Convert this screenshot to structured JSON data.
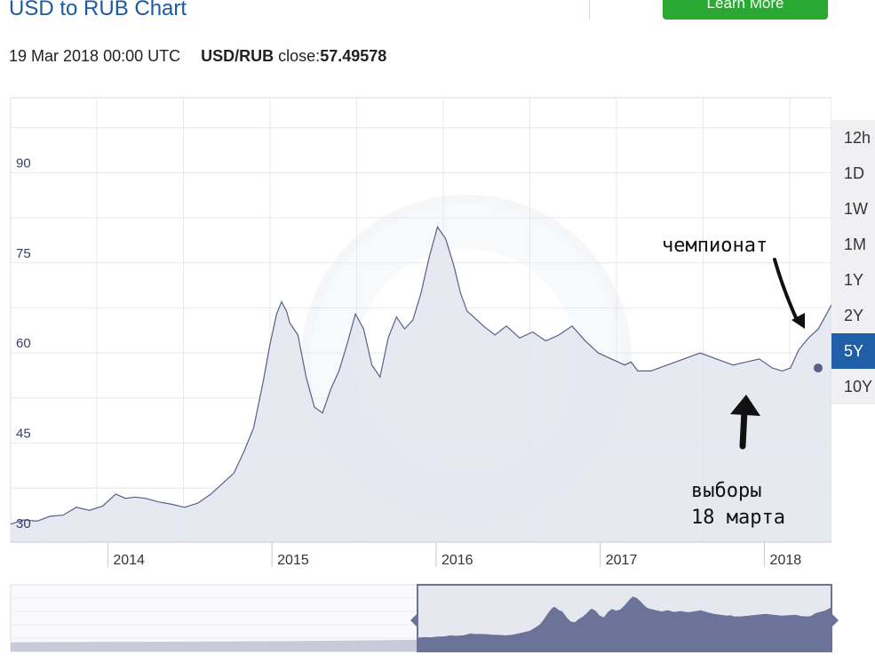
{
  "header": {
    "title": "USD to RUB Chart",
    "learn_more_label": "Learn More"
  },
  "quote": {
    "timestamp": "19 Mar 2018 00:00 UTC",
    "pair": "USD/RUB",
    "close_label": "close:",
    "close_value": "57.49578"
  },
  "ranges": [
    "12h",
    "1D",
    "1W",
    "1M",
    "1Y",
    "2Y",
    "5Y",
    "10Y"
  ],
  "active_range": "5Y",
  "annotations": {
    "championship": "чемпионат",
    "elections_line1": "выборы",
    "elections_line2": "18 марта"
  },
  "colors": {
    "accent": "#1f5fa7",
    "button_green": "#29a832",
    "line": "#5a5f88",
    "area_fill": "#e3e5ee",
    "nav_fill": "#6c7399"
  },
  "chart_data": {
    "type": "area",
    "title": "USD to RUB Chart",
    "xlabel": "",
    "ylabel": "",
    "x_ticks": [
      "2014",
      "2015",
      "2016",
      "2017",
      "2018"
    ],
    "y_ticks": [
      30,
      45,
      60,
      75,
      90
    ],
    "xlim": [
      2013.3,
      2018.3
    ],
    "ylim": [
      28.5,
      102.5
    ],
    "grid": true,
    "highlighted_point": {
      "x": "2018-03-19",
      "y": 57.49578
    },
    "series": [
      {
        "x": [
          2013.3,
          2013.38,
          2013.46,
          2013.54,
          2013.62,
          2013.7,
          2013.78,
          2013.86,
          2013.94,
          2014.0,
          2014.06,
          2014.12,
          2014.2,
          2014.28,
          2014.36,
          2014.44,
          2014.52,
          2014.6,
          2014.66,
          2014.72,
          2014.78,
          2014.84,
          2014.88,
          2014.92,
          2014.95,
          2014.98,
          2015.0,
          2015.05,
          2015.1,
          2015.15,
          2015.2,
          2015.25,
          2015.3,
          2015.35,
          2015.4,
          2015.45,
          2015.5,
          2015.55,
          2015.6,
          2015.65,
          2015.7,
          2015.75,
          2015.8,
          2015.85,
          2015.9,
          2015.95,
          2016.0,
          2016.04,
          2016.08,
          2016.12,
          2016.18,
          2016.25,
          2016.32,
          2016.4,
          2016.48,
          2016.56,
          2016.64,
          2016.72,
          2016.8,
          2016.88,
          2016.96,
          2017.04,
          2017.08,
          2017.12,
          2017.2,
          2017.3,
          2017.4,
          2017.5,
          2017.6,
          2017.7,
          2017.78,
          2017.86,
          2017.94,
          2018.0,
          2018.05,
          2018.1,
          2018.16,
          2018.22,
          2018.28,
          2018.3
        ],
        "y": [
          31.5,
          32.2,
          32.0,
          32.8,
          33.0,
          34.3,
          33.8,
          34.5,
          36.5,
          35.8,
          36.0,
          35.8,
          35.2,
          34.8,
          34.3,
          35.0,
          36.5,
          38.5,
          40.0,
          43.5,
          47.5,
          55.5,
          61.5,
          66.5,
          68.5,
          67.0,
          65.0,
          63.0,
          56.0,
          51.0,
          50.0,
          54.0,
          57.0,
          61.5,
          66.5,
          64.0,
          58.0,
          56.0,
          62.5,
          66.0,
          64.0,
          65.5,
          70.0,
          76.0,
          81.0,
          79.0,
          74.5,
          70.0,
          67.0,
          66.0,
          64.5,
          63.0,
          64.5,
          62.5,
          63.5,
          62.0,
          63.0,
          64.5,
          62.0,
          60.0,
          59.0,
          58.0,
          58.5,
          57.0,
          57.0,
          58.0,
          59.0,
          60.0,
          59.0,
          58.0,
          58.5,
          59.0,
          57.5,
          57.0,
          57.5,
          60.5,
          62.5,
          64.0,
          67.0,
          68.0
        ]
      }
    ]
  }
}
